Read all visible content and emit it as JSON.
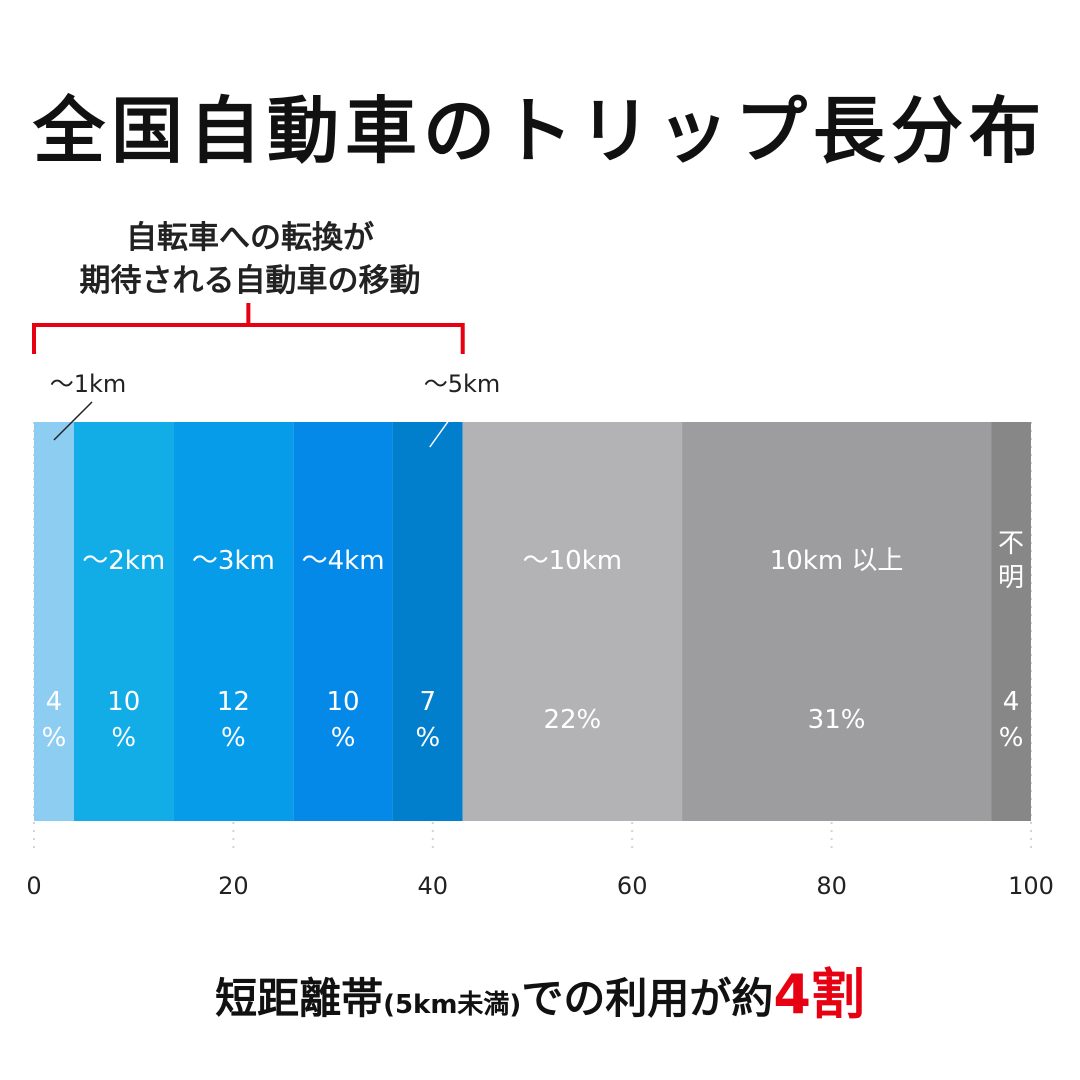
{
  "title": "全国自動車のトリップ長分布",
  "annotation": {
    "line1": "自転車への転換が",
    "line2": "期待される自動車の移動",
    "bracket_color": "#e60012"
  },
  "callouts": {
    "km1": "～1km",
    "km5": "～5km"
  },
  "chart_data": {
    "type": "bar",
    "orientation": "horizontal-stacked",
    "xlim": [
      0,
      100
    ],
    "xticks": [
      "0",
      "20",
      "40",
      "60",
      "80",
      "100"
    ],
    "segments": [
      {
        "label": "",
        "value": 4,
        "value_text": "4%",
        "color": "#8ecdf2",
        "vertical": true
      },
      {
        "label": "～2km",
        "value": 10,
        "value_text": "10%",
        "color": "#12ace6",
        "vertical": true
      },
      {
        "label": "～3km",
        "value": 12,
        "value_text": "12%",
        "color": "#079cea",
        "vertical": true
      },
      {
        "label": "～4km",
        "value": 10,
        "value_text": "10%",
        "color": "#0489e8",
        "vertical": true
      },
      {
        "label": "",
        "value": 7,
        "value_text": "7%",
        "color": "#027fcc",
        "vertical": true
      },
      {
        "label": "～10km",
        "value": 22,
        "value_text": "22%",
        "color": "#b3b3b5",
        "vertical": false
      },
      {
        "label": "10km 以上",
        "value": 31,
        "value_text": "31%",
        "color": "#9d9d9f",
        "vertical": false
      },
      {
        "label": "不明",
        "value": 4,
        "value_text": "4%",
        "color": "#878787",
        "vertical": true
      }
    ]
  },
  "summary": {
    "main": "短距離帯",
    "paren": "(5km未満)",
    "mid": "での利用が約",
    "highlight": "4割"
  }
}
